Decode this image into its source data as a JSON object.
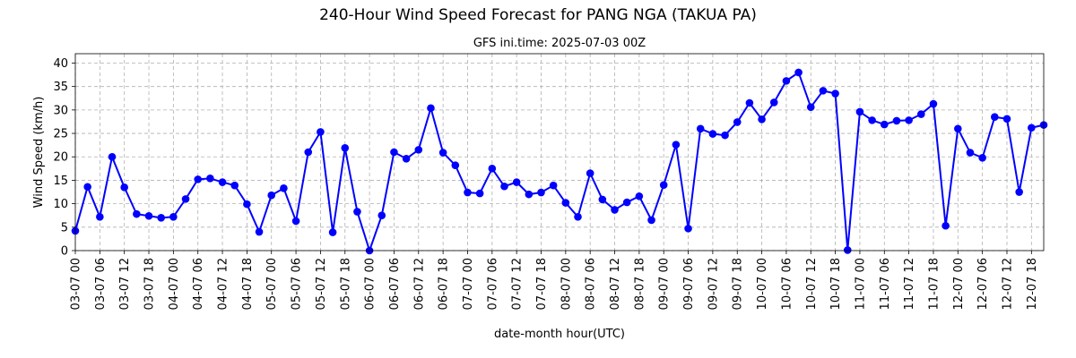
{
  "chart_data": {
    "type": "line",
    "title": "240-Hour Wind Speed Forecast for PANG NGA (TAKUA PA)",
    "subtitle": "GFS ini.time: 2025-07-03 00Z",
    "xlabel": "date-month hour(UTC)",
    "ylabel": "Wind Speed (km/h)",
    "ylim": [
      0,
      42
    ],
    "yticks": [
      0,
      5,
      10,
      15,
      20,
      25,
      30,
      35,
      40
    ],
    "grid": true,
    "line_color": "#0000ff",
    "x_step_hours": 3,
    "xtick_labels": [
      "03-07 00",
      "03-07 06",
      "03-07 12",
      "03-07 18",
      "04-07 00",
      "04-07 06",
      "04-07 12",
      "04-07 18",
      "05-07 00",
      "05-07 06",
      "05-07 12",
      "05-07 18",
      "06-07 00",
      "06-07 06",
      "06-07 12",
      "06-07 18",
      "07-07 00",
      "07-07 06",
      "07-07 12",
      "07-07 18",
      "08-07 00",
      "08-07 06",
      "08-07 12",
      "08-07 18",
      "09-07 00",
      "09-07 06",
      "09-07 12",
      "09-07 18",
      "10-07 00",
      "10-07 06",
      "10-07 12",
      "10-07 18",
      "11-07 00",
      "11-07 06",
      "11-07 12",
      "11-07 18",
      "12-07 00",
      "12-07 06",
      "12-07 12",
      "12-07 18"
    ],
    "series": [
      {
        "values": [
          4.2,
          13.6,
          7.2,
          20.0,
          13.5,
          7.8,
          7.4,
          7.0,
          7.2,
          11.0,
          15.2,
          15.4,
          14.6,
          13.9,
          9.9,
          4.0,
          11.8,
          13.3,
          6.3,
          21.0,
          25.3,
          3.9,
          21.9,
          8.3,
          0.0,
          7.5,
          21.0,
          19.6,
          21.5,
          30.4,
          20.9,
          18.2,
          12.4,
          12.2,
          17.5,
          13.7,
          14.6,
          12.0,
          12.4,
          13.9,
          10.2,
          7.2,
          16.5,
          10.9,
          8.7,
          10.3,
          11.6,
          6.5,
          14.0,
          22.6,
          4.7,
          26.0,
          24.9,
          24.6,
          27.4,
          31.5,
          28.0,
          31.6,
          36.2,
          38.0,
          30.6,
          34.1,
          33.5,
          0.1,
          29.6,
          27.8,
          26.9,
          27.7,
          27.8,
          29.1,
          31.3,
          5.3,
          26.0,
          20.9,
          19.8,
          28.5,
          28.1,
          12.5,
          26.2,
          26.8
        ]
      }
    ]
  }
}
